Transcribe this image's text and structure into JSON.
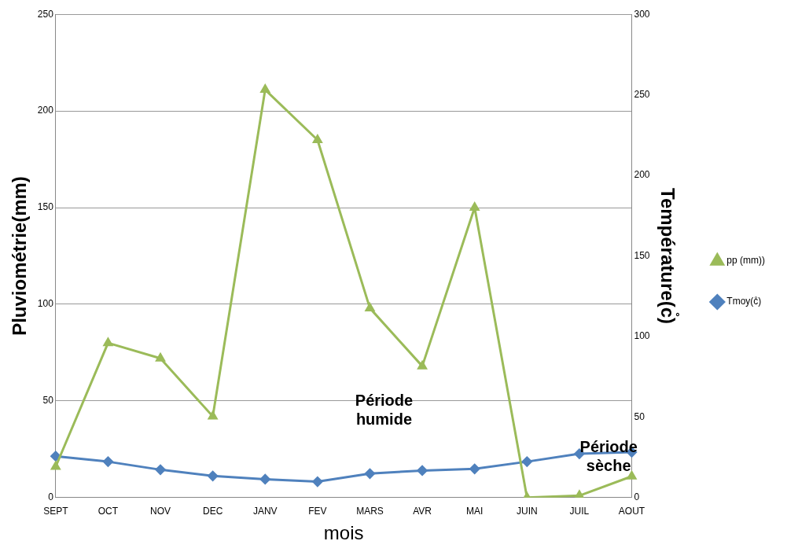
{
  "chart_data": {
    "type": "line",
    "xlabel": "mois",
    "ylabel": "Pluviométrie(mm)",
    "y2label": "Température(c̊)",
    "categories": [
      "SEPT",
      "OCT",
      "NOV",
      "DEC",
      "JANV",
      "FEV",
      "MARS",
      "AVR",
      "MAI",
      "JUIN",
      "JUIL",
      "AOUT"
    ],
    "series": [
      {
        "name": "pp (mm))",
        "color": "#9bbb59",
        "marker": "triangle",
        "values": [
          16,
          80,
          72,
          42,
          211,
          185,
          98,
          68,
          150,
          0,
          1,
          11
        ]
      },
      {
        "name": "Tmoy(c̊)",
        "color": "#4f81bd",
        "marker": "diamond",
        "axis": "y2",
        "values": [
          25.7,
          22.3,
          17.3,
          13.4,
          11.4,
          9.9,
          14.9,
          16.8,
          17.8,
          22.3,
          27.2,
          28.2
        ]
      }
    ],
    "ylim": [
      0,
      250
    ],
    "yticks": [
      0,
      50,
      100,
      150,
      200,
      250
    ],
    "y2lim": [
      0,
      300
    ],
    "y2ticks": [
      0,
      50,
      100,
      150,
      200,
      250,
      300
    ],
    "grid": "y",
    "legend": "right",
    "annotations": [
      "Période humide",
      "Période sèche"
    ]
  }
}
